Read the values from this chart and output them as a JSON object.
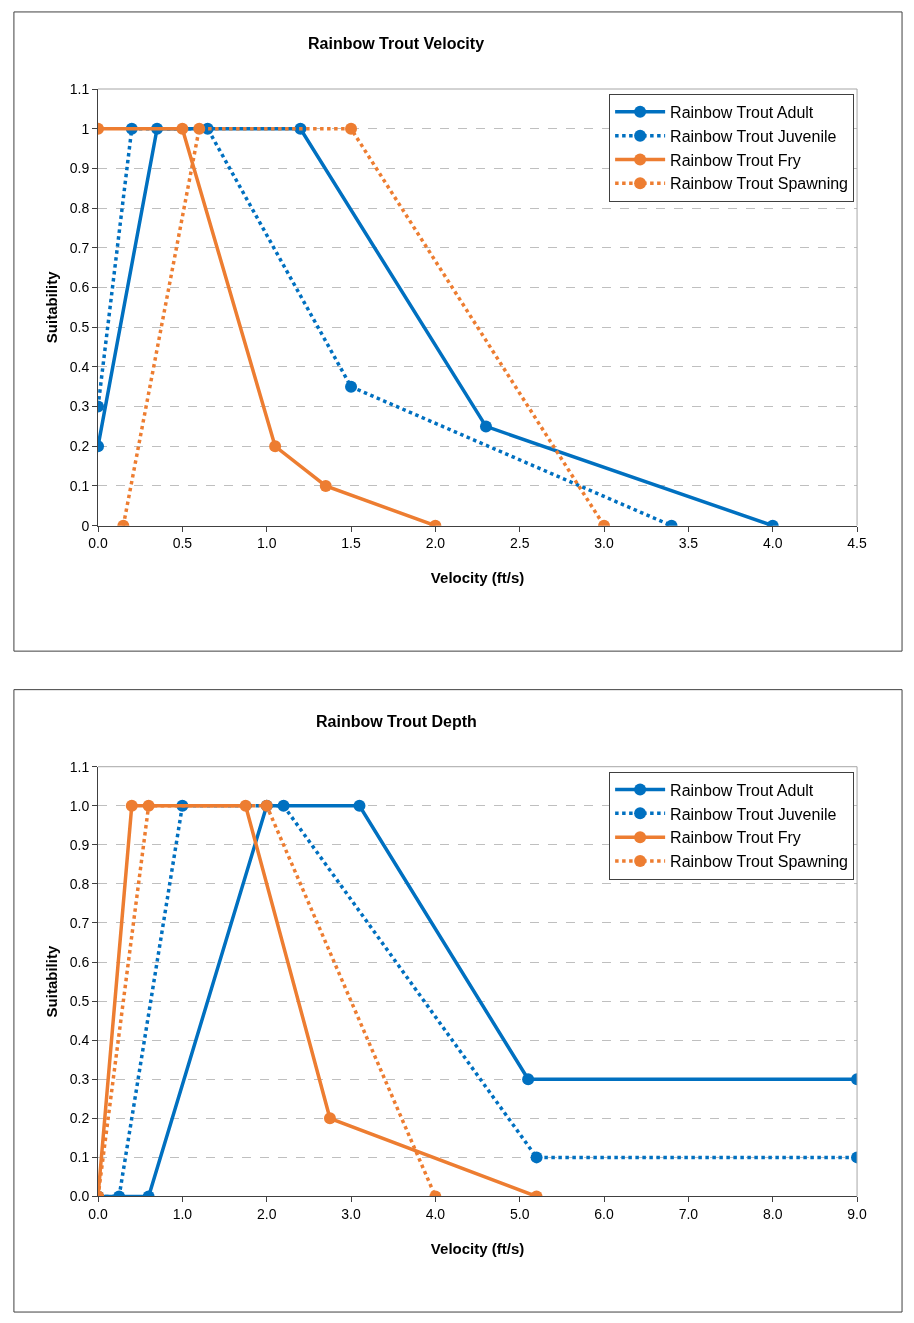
{
  "chart_data": [
    {
      "type": "line",
      "title": "Rainbow Trout Velocity",
      "xlabel": "Velocity (ft/s)",
      "ylabel": "Suitability",
      "xlim": [
        0,
        4.5
      ],
      "xticks": [
        {
          "value": 0,
          "label": "0.0"
        },
        0.5,
        {
          "value": 1,
          "label": "1.0"
        },
        1.5,
        {
          "value": 2,
          "label": "2.0"
        },
        2.5,
        {
          "value": 3,
          "label": "3.0"
        },
        3.5,
        {
          "value": 4,
          "label": "4.0"
        },
        4.5
      ],
      "ylim": [
        0,
        1.1
      ],
      "yticks": [
        0,
        0.1,
        0.2,
        0.3,
        0.4,
        0.5,
        0.6,
        0.7,
        0.8,
        0.9,
        1,
        1.1
      ],
      "grid": "y",
      "legend": "top right",
      "marker": "circle",
      "series": [
        {
          "name": "Rainbow Trout Adult",
          "color": "#0070c0",
          "line_style": "solid",
          "x": [
            0,
            0.35,
            1.2,
            2.3,
            4.0
          ],
          "values": [
            0.2,
            1,
            1,
            0.25,
            0
          ]
        },
        {
          "name": "Rainbow Trout Juvenile",
          "color": "#0070c0",
          "line_style": "dotted",
          "x": [
            0,
            0.2,
            0.65,
            1.5,
            3.4
          ],
          "values": [
            0.3,
            1,
            1,
            0.35,
            0
          ]
        },
        {
          "name": "Rainbow Trout Fry",
          "color": "#ed7d31",
          "line_style": "solid",
          "x": [
            0,
            0.5,
            1.05,
            1.35,
            2.0
          ],
          "values": [
            1,
            1,
            0.2,
            0.1,
            0
          ]
        },
        {
          "name": "Rainbow Trout Spawning",
          "color": "#ed7d31",
          "line_style": "dotted",
          "x": [
            0.15,
            0.6,
            1.5,
            3.0
          ],
          "values": [
            0,
            1,
            1,
            0
          ]
        }
      ]
    },
    {
      "type": "line",
      "title": "Rainbow Trout Depth",
      "xlabel": "Velocity (ft/s)",
      "ylabel": "Suitability",
      "xlim": [
        0,
        9
      ],
      "xticks": [
        {
          "value": 0,
          "label": "0.0"
        },
        {
          "value": 1,
          "label": "1.0"
        },
        {
          "value": 2,
          "label": "2.0"
        },
        {
          "value": 3,
          "label": "3.0"
        },
        {
          "value": 4,
          "label": "4.0"
        },
        {
          "value": 5,
          "label": "5.0"
        },
        {
          "value": 6,
          "label": "6.0"
        },
        {
          "value": 7,
          "label": "7.0"
        },
        {
          "value": 8,
          "label": "8.0"
        },
        {
          "value": 9,
          "label": "9.0"
        }
      ],
      "ylim": [
        0,
        1.1
      ],
      "yticks": [
        {
          "value": 0,
          "label": "0.0"
        },
        0.1,
        0.2,
        0.3,
        0.4,
        0.5,
        0.6,
        0.7,
        0.8,
        0.9,
        {
          "value": 1,
          "label": "1.0"
        },
        1.1
      ],
      "grid": "y",
      "legend": "top right",
      "marker": "circle",
      "series": [
        {
          "name": "Rainbow Trout Adult",
          "color": "#0070c0",
          "line_style": "solid",
          "x": [
            0,
            0.6,
            2.0,
            3.1,
            5.1,
            9
          ],
          "values": [
            0,
            0,
            1,
            1,
            0.3,
            0.3
          ]
        },
        {
          "name": "Rainbow Trout Juvenile",
          "color": "#0070c0",
          "line_style": "dotted",
          "x": [
            0,
            0.25,
            1.0,
            2.2,
            5.2,
            9
          ],
          "values": [
            0,
            0,
            1,
            1,
            0.1,
            0.1
          ]
        },
        {
          "name": "Rainbow Trout Fry",
          "color": "#ed7d31",
          "line_style": "solid",
          "x": [
            0,
            0.4,
            1.75,
            2.75,
            5.2
          ],
          "values": [
            0,
            1,
            1,
            0.2,
            0
          ]
        },
        {
          "name": "Rainbow Trout Spawning",
          "color": "#ed7d31",
          "line_style": "dotted",
          "x": [
            0,
            0.6,
            2.0,
            4.0
          ],
          "values": [
            0,
            1,
            1,
            0
          ]
        }
      ]
    }
  ]
}
